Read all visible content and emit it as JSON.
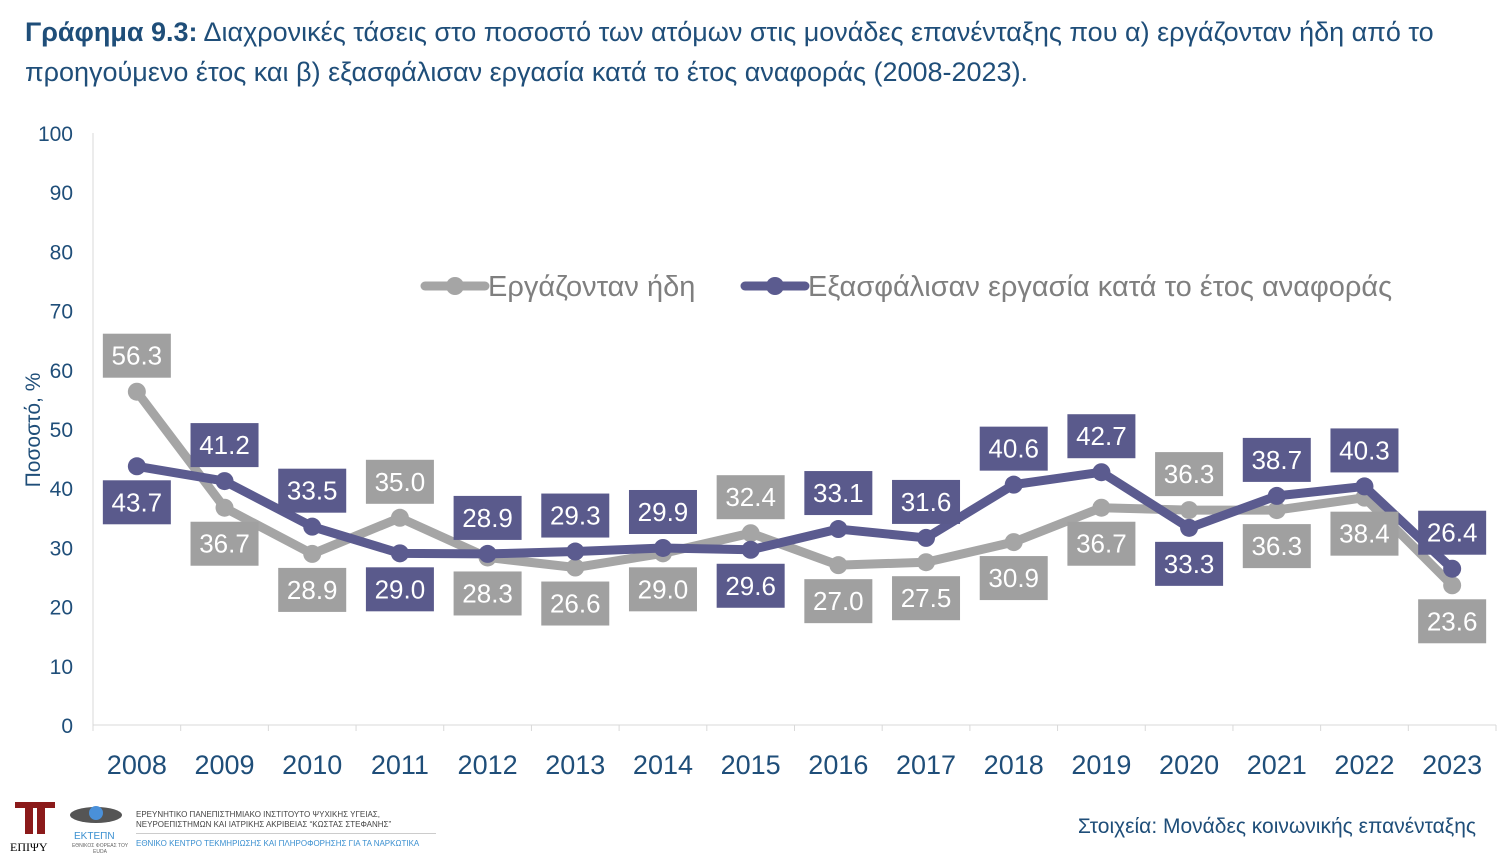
{
  "title": {
    "bold": "Γράφημα 9.3:",
    "text": " Διαχρονικές τάσεις στο ποσοστό των ατόμων στις μονάδες επανένταξης που α) εργάζονταν ήδη από το προηγούμενο έτος και β) εξασφάλισαν εργασία κατά το έτος αναφοράς (2008-2023)."
  },
  "source": "Στοιχεία: Μονάδες κοινωνικής επανένταξης",
  "footer": {
    "logo1": "ΕΠΙΨΥ",
    "logo2": "ΕΚΤΕΠΝ",
    "logo2_sub": "ΕΘΝΙΚΟΣ ΦΟΡΕΑΣ ΤΟΥ EUDA",
    "inst_line1": "ΕΡΕΥΝΗΤΙΚΟ ΠΑΝΕΠΙΣΤΗΜΙΑΚΟ ΙΝΣΤΙΤΟΥΤΟ ΨΥΧΙΚΗΣ ΥΓΕΙΑΣ,",
    "inst_line2": "ΝΕΥΡΟΕΠΙΣΤΗΜΩΝ ΚΑΙ ΙΑΤΡΙΚΗΣ ΑΚΡΙΒΕΙΑΣ “ΚΩΣΤΑΣ ΣΤΕΦΑΝΗΣ”",
    "inst_line3": "ΕΘΝΙΚΟ ΚΕΝΤΡΟ ΤΕΚΜΗΡΙΩΣΗΣ ΚΑΙ ΠΛΗΡΟΦΟΡΗΣΗΣ ΓΙΑ ΤΑ ΝΑΡΚΩΤΙΚΑ"
  },
  "chart_data": {
    "type": "line",
    "ylabel": "Ποσοστό, %",
    "ylim": [
      0,
      100
    ],
    "yticks": [
      0,
      10,
      20,
      30,
      40,
      50,
      60,
      70,
      80,
      90,
      100
    ],
    "grid": false,
    "legend": "top-center",
    "categories": [
      "2008",
      "2009",
      "2010",
      "2011",
      "2012",
      "2013",
      "2014",
      "2015",
      "2016",
      "2017",
      "2018",
      "2019",
      "2020",
      "2021",
      "2022",
      "2023"
    ],
    "series": [
      {
        "name": "Εργάζονταν ήδη",
        "color": "#a5a5a5",
        "values": [
          56.3,
          36.7,
          28.9,
          35.0,
          28.3,
          26.6,
          29.0,
          32.4,
          27.0,
          27.5,
          30.9,
          36.7,
          36.3,
          36.3,
          38.4,
          23.6
        ]
      },
      {
        "name": "Εξασφάλισαν εργασία κατά το έτος αναφοράς",
        "color": "#5b5b8f",
        "values": [
          43.7,
          41.2,
          33.5,
          29.0,
          28.9,
          29.3,
          29.9,
          29.6,
          33.1,
          31.6,
          40.6,
          42.7,
          33.3,
          38.7,
          40.3,
          26.4
        ]
      }
    ]
  }
}
